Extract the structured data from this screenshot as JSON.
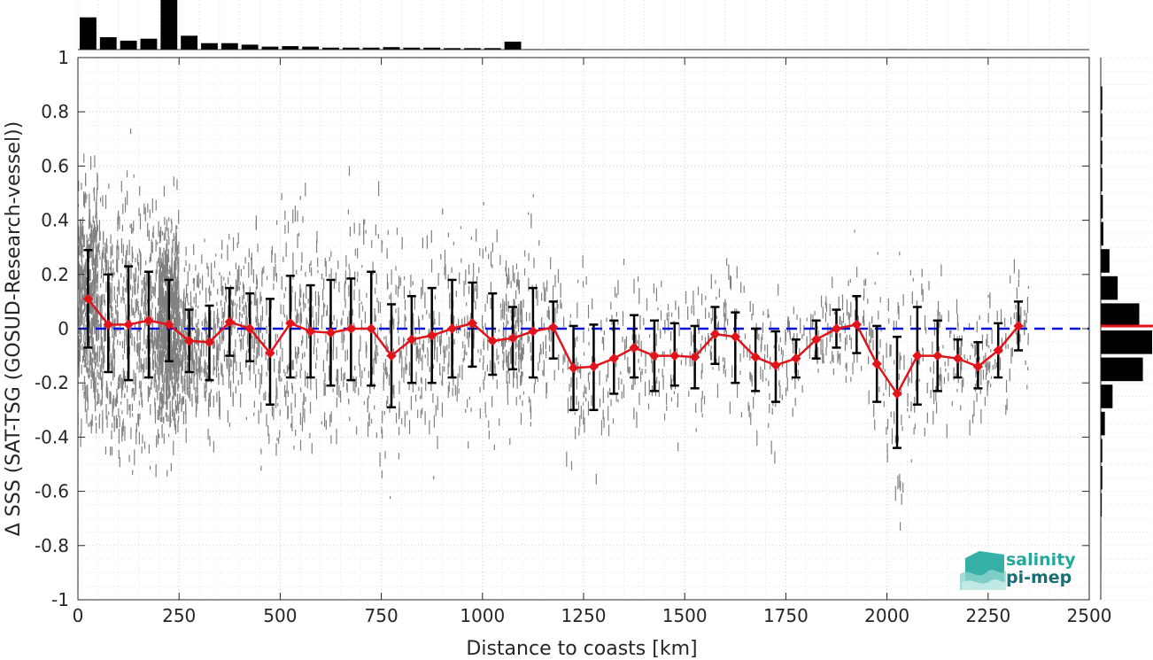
{
  "chart_data": {
    "type": "scatter",
    "xlabel": "Distance to coasts [km]",
    "ylabel": "Δ SSS (SAT-TSG (GOSUD-Research-vessel))",
    "xlim": [
      0,
      2500
    ],
    "ylim": [
      -1,
      1
    ],
    "xticks": [
      "0",
      "250",
      "500",
      "750",
      "1000",
      "1250",
      "1500",
      "1750",
      "2000",
      "2250",
      "2500"
    ],
    "yticks": [
      "-1",
      "-0.8",
      "-0.6",
      "-0.4",
      "-0.2",
      "0",
      "0.2",
      "0.4",
      "0.6",
      "0.8",
      "1"
    ],
    "grid": true,
    "zero_line": {
      "y": 0,
      "color": "#0a14d8",
      "style": "dashed"
    },
    "scatter_color": "#808080",
    "bin_series": {
      "color": "#e0141a",
      "errorbar_color": "#000000",
      "x": [
        25,
        75,
        125,
        175,
        225,
        275,
        325,
        375,
        425,
        475,
        525,
        575,
        625,
        675,
        725,
        775,
        825,
        875,
        925,
        975,
        1025,
        1075,
        1125,
        1175,
        1225,
        1275,
        1325,
        1375,
        1425,
        1475,
        1525,
        1575,
        1625,
        1675,
        1725,
        1775,
        1825,
        1875,
        1925,
        1975,
        2025,
        2075,
        2125,
        2175,
        2225,
        2275,
        2325
      ],
      "median": [
        0.11,
        0.015,
        0.015,
        0.03,
        0.015,
        -0.045,
        -0.05,
        0.025,
        0.0,
        -0.09,
        0.02,
        -0.01,
        -0.015,
        0.0,
        0.0,
        -0.1,
        -0.04,
        -0.025,
        0.0,
        0.02,
        -0.045,
        -0.035,
        -0.01,
        0.005,
        -0.145,
        -0.14,
        -0.11,
        -0.07,
        -0.1,
        -0.1,
        -0.105,
        -0.02,
        -0.03,
        -0.105,
        -0.135,
        -0.11,
        -0.04,
        0.0,
        0.015,
        -0.13,
        -0.24,
        -0.1,
        -0.1,
        -0.11,
        -0.14,
        -0.08,
        0.01
      ],
      "err_low": [
        -0.07,
        -0.16,
        -0.19,
        -0.18,
        -0.12,
        -0.16,
        -0.19,
        -0.1,
        -0.12,
        -0.28,
        -0.18,
        -0.18,
        -0.21,
        -0.19,
        -0.21,
        -0.29,
        -0.2,
        -0.2,
        -0.18,
        -0.14,
        -0.17,
        -0.15,
        -0.18,
        -0.11,
        -0.3,
        -0.3,
        -0.24,
        -0.18,
        -0.23,
        -0.21,
        -0.22,
        -0.13,
        -0.2,
        -0.23,
        -0.27,
        -0.18,
        -0.11,
        -0.07,
        -0.09,
        -0.27,
        -0.44,
        -0.28,
        -0.23,
        -0.18,
        -0.22,
        -0.18,
        -0.08
      ],
      "err_high": [
        0.29,
        0.2,
        0.23,
        0.21,
        0.18,
        0.07,
        0.085,
        0.15,
        0.13,
        0.11,
        0.195,
        0.16,
        0.18,
        0.185,
        0.21,
        0.09,
        0.12,
        0.15,
        0.18,
        0.17,
        0.13,
        0.08,
        0.15,
        0.1,
        0.01,
        0.015,
        0.03,
        0.05,
        0.03,
        0.02,
        0.01,
        0.08,
        0.06,
        0.0,
        -0.01,
        -0.04,
        0.03,
        0.07,
        0.12,
        0.01,
        -0.03,
        0.08,
        0.03,
        -0.04,
        -0.05,
        0.02,
        0.1
      ]
    },
    "top_histogram": {
      "bin_width": 50,
      "x": [
        25,
        75,
        125,
        175,
        225,
        275,
        325,
        375,
        425,
        475,
        525,
        575,
        625,
        675,
        725,
        775,
        825,
        875,
        925,
        975,
        1025,
        1075,
        1125,
        1175,
        1225,
        1275,
        1325,
        1375,
        1425,
        1475,
        1525,
        1575,
        1625,
        1675,
        1725,
        1775,
        1825,
        1875,
        1925,
        1975,
        2025,
        2075,
        2125,
        2175,
        2225,
        2275,
        2325
      ],
      "relative_count": [
        0.65,
        0.25,
        0.18,
        0.22,
        1.0,
        0.28,
        0.13,
        0.13,
        0.1,
        0.06,
        0.07,
        0.06,
        0.04,
        0.04,
        0.04,
        0.05,
        0.04,
        0.04,
        0.03,
        0.03,
        0.03,
        0.16,
        0.01,
        0.01,
        0.01,
        0.0,
        0.0,
        0.0,
        0.0,
        0.0,
        0.0,
        0.0,
        0.0,
        0.0,
        0.0,
        0.0,
        0.0,
        0.0,
        0.0,
        0.0,
        0.01,
        0.0,
        0.0,
        0.0,
        0.01,
        0.0,
        0.0
      ]
    },
    "right_histogram": {
      "bin_width": 0.1,
      "y": [
        0.95,
        0.85,
        0.75,
        0.65,
        0.55,
        0.45,
        0.35,
        0.25,
        0.15,
        0.05,
        -0.05,
        -0.15,
        -0.25,
        -0.35,
        -0.45,
        -0.55,
        -0.65,
        -0.75,
        -0.85,
        -0.95
      ],
      "relative_count": [
        0.0,
        0.03,
        0.03,
        0.03,
        0.03,
        0.04,
        0.05,
        0.17,
        0.33,
        0.75,
        1.0,
        0.82,
        0.23,
        0.08,
        0.03,
        0.03,
        0.02,
        0.01,
        0.01,
        0.0
      ],
      "median_line": {
        "y": 0.01,
        "color": "#e0141a"
      }
    }
  },
  "logo": {
    "line1": "salinity",
    "line2": "pi-mep",
    "color1": "#21a99e",
    "color2": "#1b6d75"
  }
}
